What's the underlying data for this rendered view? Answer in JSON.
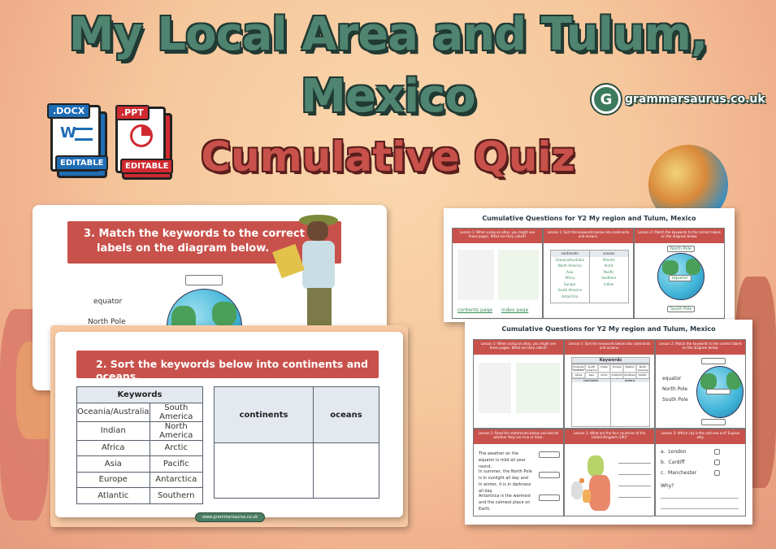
{
  "header": {
    "title_line1": "My Local Area and Tulum,",
    "title_line2": "Mexico",
    "subtitle": "Cumulative Quiz",
    "logo_text": "grammarsaurus.co.uk",
    "logo_badge": "G"
  },
  "files": [
    {
      "ext": ".DOCX",
      "label": "EDITABLE",
      "icon": "word-icon",
      "color": "#1f6db5",
      "glyph": "W"
    },
    {
      "ext": ".PPT",
      "label": "EDITABLE",
      "icon": "powerpoint-icon",
      "color": "#d02a30"
    }
  ],
  "colors": {
    "title": "#4f8470",
    "subtitle": "#c9514b",
    "header_bar": "#c9514b",
    "brand": "#4a7d64"
  },
  "slide_match": {
    "heading_line1": "3. Match the keywords to the correct",
    "heading_line2": "labels on the diagram below.",
    "keywords": [
      "equator",
      "North Pole"
    ]
  },
  "slide_sort": {
    "heading": "2. Sort the keywords below into continents and oceans.",
    "keywords_header": "Keywords",
    "keywords": [
      [
        "Oceania/Australia",
        "South America"
      ],
      [
        "Indian",
        "North America"
      ],
      [
        "Africa",
        "Arctic"
      ],
      [
        "Asia",
        "Pacific"
      ],
      [
        "Europe",
        "Antarctica"
      ],
      [
        "Atlantic",
        "Southern"
      ]
    ],
    "columns": [
      "continents",
      "oceans"
    ],
    "footer": "www.grammarsaurus.co.uk"
  },
  "worksheet_answers": {
    "title": "Cumulative Questions for Y2 My region and Tulum, Mexico",
    "q1": "Lesson 1: When using an atlas, you might see these pages. What are they called?",
    "q2": "Lesson 1: Sort the keywords below into continents and oceans.",
    "q3": "Lesson 2: Match the keywords to the correct labels on the diagram below.",
    "answers_pages": [
      "contents page",
      "index page"
    ],
    "columns": [
      "continents",
      "oceans"
    ],
    "continents": [
      "Oceania/Australia",
      "North America",
      "Asia",
      "Africa",
      "Europe",
      "South America",
      "Antarctica"
    ],
    "oceans": [
      "Atlantic",
      "Arctic",
      "Pacific",
      "Southern",
      "Indian"
    ],
    "globe_labels": [
      "North Pole",
      "equator",
      "South Pole"
    ]
  },
  "worksheet": {
    "title": "Cumulative Questions for Y2 My region and Tulum, Mexico",
    "q1": "Lesson 1: When using an atlas, you might see these pages. What are they called?",
    "q2": "Lesson 1: Sort the keywords below into continents and oceans.",
    "q3": "Lesson 2: Match the keywords to the correct labels on the diagram below.",
    "q4": "Lesson 2: Read the statements below and decide whether they are true or false.",
    "q5": "Lesson 3: What are the four countries of the United Kingdom (UK)?",
    "q6": "Lesson 3: Which city is the odd one out? Explain why.",
    "keywords_header": "Keywords",
    "keywords": [
      "Oceania/Australia",
      "South America",
      "Indian",
      "Europe",
      "Atlantic",
      "North America",
      "Africa",
      "Asia",
      "Arctic",
      "Antarctica",
      "Southern",
      "Pacific"
    ],
    "columns": [
      "continents",
      "oceans"
    ],
    "globe_keywords": [
      "equator",
      "North Pole",
      "South Pole"
    ],
    "statements": [
      "The weather on the equator is mild all year round.",
      "In summer, the North Pole is in sunlight all day and in winter, it is in darkness all day.",
      "Antarctica is the warmest and the calmest place on Earth."
    ],
    "cities": [
      {
        "letter": "a.",
        "name": "London"
      },
      {
        "letter": "b.",
        "name": "Cardiff"
      },
      {
        "letter": "c.",
        "name": "Manchester"
      }
    ],
    "why": "Why?"
  }
}
